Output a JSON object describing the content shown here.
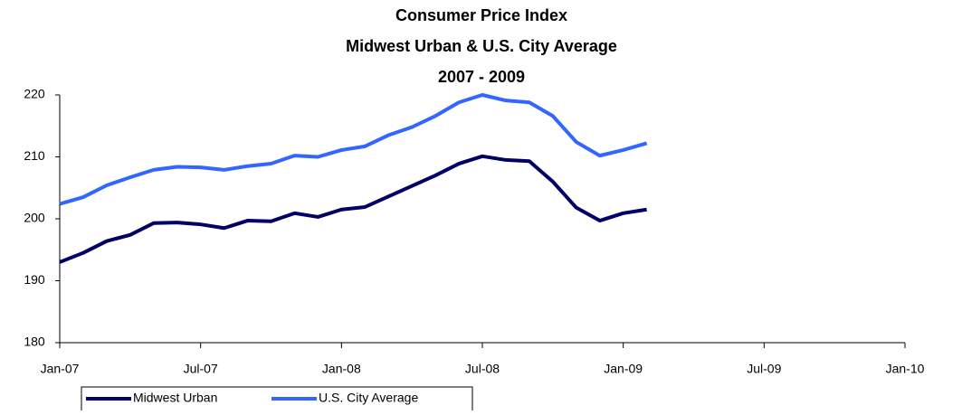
{
  "chart_data": {
    "type": "line",
    "title": [
      "Consumer Price Index",
      "Midwest Urban & U.S. City Average",
      "2007 - 2009"
    ],
    "x": [
      0,
      1,
      2,
      3,
      4,
      5,
      6,
      7,
      8,
      9,
      10,
      11,
      12,
      13,
      14,
      15,
      16,
      17,
      18,
      19,
      20,
      21,
      22,
      23,
      24,
      25
    ],
    "series": [
      {
        "name": "Midwest Urban",
        "color": "#000066",
        "values": [
          193.0,
          194.5,
          196.4,
          197.4,
          199.3,
          199.4,
          199.1,
          198.5,
          199.7,
          199.6,
          200.9,
          200.3,
          201.5,
          201.9,
          203.6,
          205.3,
          207.0,
          208.9,
          210.1,
          209.5,
          209.3,
          206.0,
          201.8,
          199.7,
          200.9,
          201.5
        ]
      },
      {
        "name": "U.S. City Average",
        "color": "#3366ff",
        "values": [
          202.4,
          203.5,
          205.4,
          206.7,
          207.9,
          208.4,
          208.3,
          207.9,
          208.5,
          208.9,
          210.2,
          210.0,
          211.1,
          211.7,
          213.5,
          214.8,
          216.6,
          218.8,
          220.0,
          219.1,
          218.8,
          216.6,
          212.4,
          210.2,
          211.1,
          212.2
        ]
      }
    ],
    "xlim": [
      0,
      36
    ],
    "xticks": [
      {
        "value": 0,
        "label": "Jan-07"
      },
      {
        "value": 6,
        "label": "Jul-07"
      },
      {
        "value": 12,
        "label": "Jan-08"
      },
      {
        "value": 18,
        "label": "Jul-08"
      },
      {
        "value": 24,
        "label": "Jan-09"
      },
      {
        "value": 30,
        "label": "Jul-09"
      },
      {
        "value": 36,
        "label": "Jan-10"
      }
    ],
    "ylim": [
      180,
      220
    ],
    "yticks": [
      180,
      190,
      200,
      210,
      220
    ],
    "grid": false,
    "legend": "bottom"
  }
}
